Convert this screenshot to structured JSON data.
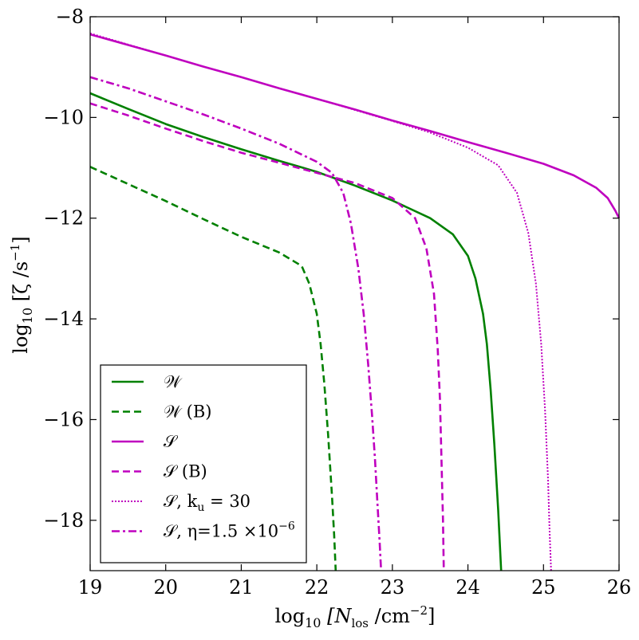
{
  "chart_data": {
    "type": "line",
    "title": "",
    "xlabel": "log₁₀ [N_los /cm⁻²]",
    "ylabel": "log₁₀ [ζ /s⁻¹]",
    "xlim": [
      19,
      26
    ],
    "ylim": [
      -19,
      -8
    ],
    "x_ticks": [
      19,
      20,
      21,
      22,
      23,
      24,
      25,
      26
    ],
    "y_ticks": [
      -18,
      -16,
      -14,
      -12,
      -10,
      -8
    ],
    "x_tick_labels": [
      "19",
      "20",
      "21",
      "22",
      "23",
      "24",
      "25",
      "26"
    ],
    "y_tick_labels": [
      "−18",
      "−16",
      "−14",
      "−12",
      "−10",
      "−8"
    ],
    "grid": false,
    "legend_position": "lower-left",
    "series": [
      {
        "name": "𝒲",
        "color": "#008000",
        "dash": "solid",
        "x": [
          19,
          19.5,
          20,
          20.5,
          21,
          21.5,
          22,
          22.5,
          23,
          23.5,
          23.8,
          24.0,
          24.1,
          24.2,
          24.25,
          24.3,
          24.35,
          24.4,
          24.44
        ],
        "y": [
          -9.52,
          -9.83,
          -10.13,
          -10.39,
          -10.63,
          -10.86,
          -11.08,
          -11.35,
          -11.65,
          -12.0,
          -12.32,
          -12.75,
          -13.2,
          -13.9,
          -14.5,
          -15.4,
          -16.5,
          -17.8,
          -19.0
        ]
      },
      {
        "name": "𝒲 (B)",
        "color": "#008000",
        "dash": "dashed",
        "x": [
          19,
          19.5,
          20,
          20.5,
          21,
          21.5,
          21.8,
          21.9,
          22.0,
          22.05,
          22.1,
          22.15,
          22.2,
          22.23,
          22.25
        ],
        "y": [
          -10.98,
          -11.32,
          -11.66,
          -12.02,
          -12.37,
          -12.68,
          -12.95,
          -13.3,
          -13.9,
          -14.5,
          -15.3,
          -16.3,
          -17.5,
          -18.3,
          -19.0
        ]
      },
      {
        "name": "𝒮",
        "color": "#BF00BF",
        "dash": "solid",
        "x": [
          19,
          19.5,
          20,
          20.5,
          21,
          21.5,
          22,
          22.5,
          23,
          23.5,
          24,
          24.5,
          25,
          25.4,
          25.7,
          25.85,
          25.95,
          26.0
        ],
        "y": [
          -8.35,
          -8.56,
          -8.77,
          -8.99,
          -9.2,
          -9.42,
          -9.63,
          -9.84,
          -10.06,
          -10.27,
          -10.49,
          -10.7,
          -10.92,
          -11.15,
          -11.4,
          -11.6,
          -11.85,
          -12.0
        ]
      },
      {
        "name": "𝒮 (B)",
        "color": "#BF00BF",
        "dash": "dashed",
        "x": [
          19,
          19.5,
          20,
          20.5,
          21,
          21.5,
          22,
          22.5,
          23,
          23.3,
          23.45,
          23.55,
          23.6,
          23.63,
          23.65,
          23.67,
          23.68
        ],
        "y": [
          -9.72,
          -9.96,
          -10.22,
          -10.47,
          -10.7,
          -10.9,
          -11.1,
          -11.3,
          -11.6,
          -12.0,
          -12.6,
          -13.5,
          -14.6,
          -15.6,
          -16.8,
          -18.0,
          -19.0
        ]
      },
      {
        "name": "𝒮, k_u = 30",
        "color": "#BF00BF",
        "dash": "dotted",
        "x": [
          19,
          19.5,
          20,
          20.5,
          21,
          21.5,
          22,
          22.5,
          23,
          23.5,
          24,
          24.4,
          24.65,
          24.8,
          24.9,
          24.97,
          25.02,
          25.06,
          25.08,
          25.1
        ],
        "y": [
          -8.33,
          -8.55,
          -8.77,
          -8.99,
          -9.2,
          -9.42,
          -9.63,
          -9.85,
          -10.07,
          -10.3,
          -10.6,
          -10.95,
          -11.5,
          -12.3,
          -13.3,
          -14.5,
          -15.8,
          -17.2,
          -18.2,
          -19.0
        ]
      },
      {
        "name": "𝒮, η=1.5 ×10⁻⁶",
        "color": "#BF00BF",
        "dash": "dashdot",
        "x": [
          19,
          19.5,
          20,
          20.5,
          21,
          21.5,
          22,
          22.2,
          22.35,
          22.45,
          22.55,
          22.62,
          22.68,
          22.73,
          22.77,
          22.8,
          22.83,
          22.85
        ],
        "y": [
          -9.2,
          -9.42,
          -9.68,
          -9.94,
          -10.22,
          -10.52,
          -10.88,
          -11.1,
          -11.5,
          -12.1,
          -13.0,
          -13.9,
          -14.9,
          -15.9,
          -16.8,
          -17.6,
          -18.4,
          -19.0
        ]
      }
    ]
  },
  "legend": {
    "entries": [
      {
        "label_main": "𝒲",
        "label_sub": "",
        "label_rest": "",
        "label_sup": ""
      },
      {
        "label_main": "𝒲 (B)",
        "label_sub": "",
        "label_rest": "",
        "label_sup": ""
      },
      {
        "label_main": "𝒮",
        "label_sub": "",
        "label_rest": "",
        "label_sup": ""
      },
      {
        "label_main": "𝒮 (B)",
        "label_sub": "",
        "label_rest": "",
        "label_sup": ""
      },
      {
        "label_main": "𝒮, k",
        "label_sub": "u",
        "label_rest": " = 30",
        "label_sup": ""
      },
      {
        "label_main": "𝒮, η=1.5 ×10",
        "label_sub": "",
        "label_rest": "",
        "label_sup": "−6"
      }
    ]
  },
  "axis_labels": {
    "x": {
      "pre": "log",
      "sub1": "10",
      "mid": " [N",
      "sub2": "los",
      "mid2": " /cm",
      "sup": "−2",
      "post": "]"
    },
    "y": {
      "pre": "log",
      "sub1": "10",
      "mid": " [ζ /s",
      "sup": "−1",
      "post": "]"
    }
  }
}
